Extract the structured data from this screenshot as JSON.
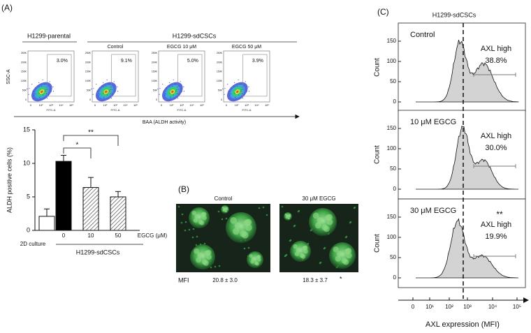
{
  "panel_a": {
    "label": "(A)",
    "parental_label": "H1299-parental",
    "group_label": "H1299-sdCSCs",
    "plots": [
      {
        "percent": "3.0%"
      },
      {
        "title": "Control",
        "percent": "9.1%"
      },
      {
        "title": "EGCG 10 μM",
        "percent": "5.0%"
      },
      {
        "title": "EGCG 50 μM",
        "percent": "3.9%"
      }
    ],
    "y_axis": "SSC-A",
    "x_axis": "FITC-A",
    "flow_yticks": [
      "250K",
      "200K",
      "150K",
      "100K",
      "50K",
      "0"
    ],
    "flow_xticks": [
      "0",
      "10²",
      "10³",
      "10⁴",
      "10⁵"
    ],
    "axis_title": "BAA (ALDH activity)"
  },
  "chart_data": {
    "type": "bar",
    "categories": [
      "2D culture",
      "0",
      "10",
      "50"
    ],
    "values": [
      2.1,
      10.3,
      6.4,
      5.0
    ],
    "errors": [
      1.1,
      0.9,
      1.5,
      0.8
    ],
    "styles": [
      "open",
      "solid",
      "hatched",
      "hatched"
    ],
    "ylabel": "ALDH positive cells (%)",
    "xlabel": "EGCG (μM)",
    "group_label": "H1299-sdCSCs",
    "significance": [
      "*",
      "**"
    ],
    "ylim": [
      0,
      15
    ],
    "yticks": [
      0,
      5,
      10,
      15
    ]
  },
  "panel_b": {
    "label": "(B)",
    "images": [
      {
        "title": "Control",
        "mfi": "20.8 ± 3.0"
      },
      {
        "title": "30 μM EGCG",
        "mfi": "18.3 ± 3.7",
        "significance": "*"
      }
    ],
    "mfi_label": "MFI"
  },
  "panel_c": {
    "label": "(C)",
    "title": "H1299-sdCSCs",
    "histograms": [
      {
        "label": "Control",
        "gate_label": "AXL high",
        "percent": "38.8%"
      },
      {
        "label": "10 μM EGCG",
        "gate_label": "AXL high",
        "percent": "30.0%"
      },
      {
        "label": "30 μM EGCG",
        "gate_label": "AXL high",
        "percent": "19.9%",
        "significance": "**"
      }
    ],
    "ylabel": "Count",
    "yticks": [
      "0",
      "50",
      "100",
      "150"
    ],
    "xticks": [
      "0",
      "10¹",
      "10²",
      "10³",
      "10⁴",
      "10⁵"
    ],
    "xlabel": "AXL expression (MFI)"
  }
}
